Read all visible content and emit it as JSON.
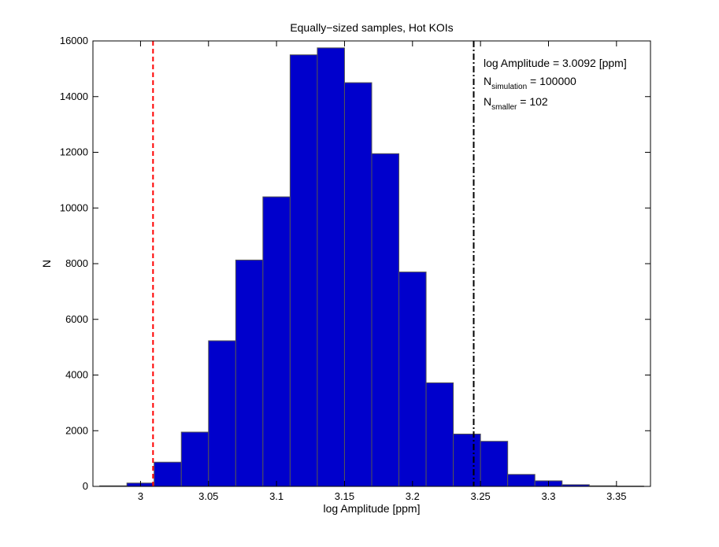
{
  "chart_data": {
    "type": "bar",
    "title": "Equally−sized samples, Hot KOIs",
    "xlabel": "log Amplitude [ppm]",
    "ylabel": "N",
    "xlim": [
      2.965,
      3.375
    ],
    "ylim": [
      0,
      16000
    ],
    "xticks": [
      3,
      3.05,
      3.1,
      3.15,
      3.2,
      3.25,
      3.3,
      3.35
    ],
    "xtick_labels": [
      "3",
      "3.05",
      "3.1",
      "3.15",
      "3.2",
      "3.25",
      "3.3",
      "3.35"
    ],
    "yticks": [
      0,
      2000,
      4000,
      6000,
      8000,
      10000,
      12000,
      14000,
      16000
    ],
    "ytick_labels": [
      "0",
      "2000",
      "4000",
      "6000",
      "8000",
      "10000",
      "12000",
      "14000",
      "16000"
    ],
    "bin_width": 0.02,
    "bin_centers": [
      2.98,
      3.0,
      3.02,
      3.04,
      3.06,
      3.08,
      3.1,
      3.12,
      3.14,
      3.16,
      3.18,
      3.2,
      3.22,
      3.24,
      3.26,
      3.28,
      3.3,
      3.32,
      3.34,
      3.36
    ],
    "values": [
      20,
      120,
      870,
      1950,
      5230,
      8130,
      10400,
      15500,
      15750,
      14500,
      11950,
      7700,
      3720,
      1880,
      1620,
      430,
      200,
      60,
      20,
      10
    ],
    "bar_color": "#0000cc",
    "bar_edge_color": "#555555",
    "vlines": [
      {
        "x": 3.0092,
        "color": "#ff0000",
        "style": "dashed"
      },
      {
        "x": 3.245,
        "color": "#000000",
        "style": "dashdot"
      }
    ],
    "annotations": {
      "line1": "log Amplitude = 3.0092 [ppm]",
      "line2_main": "N",
      "line2_sub": "simulation",
      "line2_rest": " = 100000",
      "line3_main": "N",
      "line3_sub": "smaller",
      "line3_rest": " = 102"
    },
    "grid": false,
    "legend": "none"
  }
}
